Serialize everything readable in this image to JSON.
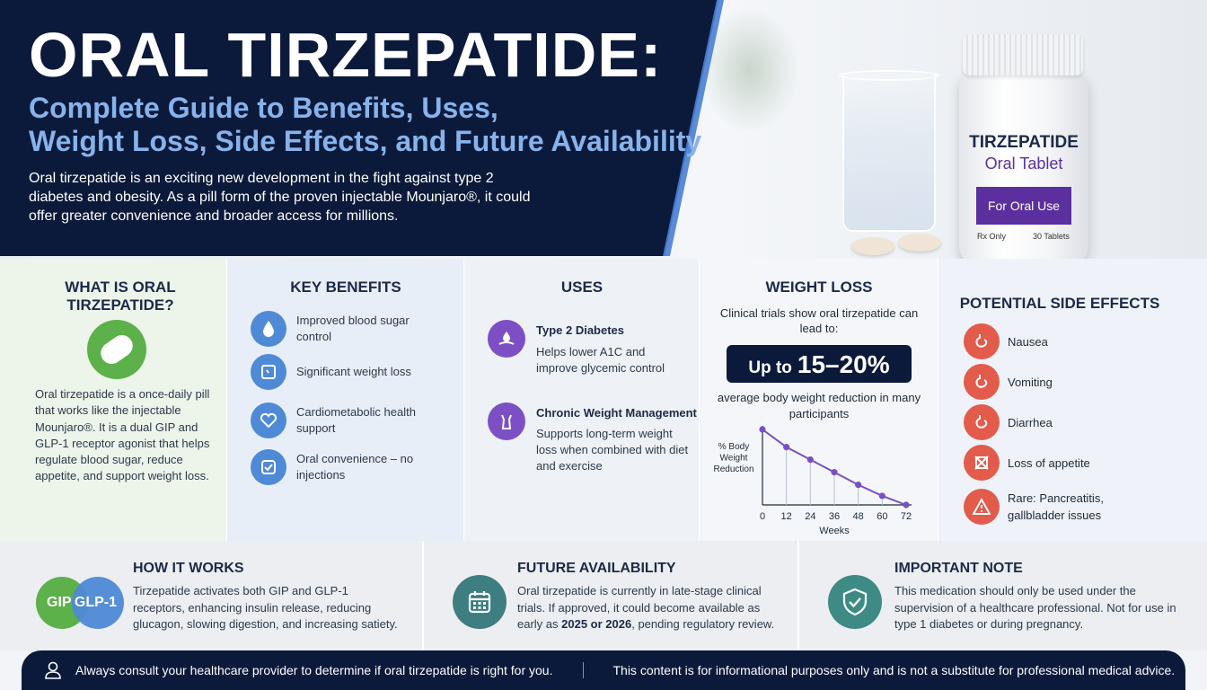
{
  "hero": {
    "title": "ORAL TIRZEPATIDE:",
    "subtitle_line1": "Complete Guide to Benefits, Uses,",
    "subtitle_line2": "Weight Loss, Side Effects, and Future Availability",
    "intro": "Oral tirzepatide is an exciting new development in the fight against type 2 diabetes and obesity. As a pill form of the proven injectable Mounjaro®, it could offer greater convenience and broader access for millions."
  },
  "bottle": {
    "brand": "TIRZEPATIDE",
    "type": "Oral Tablet",
    "use": "For Oral Use",
    "rx": "Rx Only",
    "count": "30 Tablets"
  },
  "what": {
    "title": "WHAT IS ORAL TIRZEPATIDE?",
    "text": "Oral tirzepatide is a once-daily pill that works like the injectable Mounjaro®. It is a dual GIP and GLP-1 receptor agonist that helps regulate blood sugar, reduce appetite, and support weight loss."
  },
  "benefits": {
    "title": "KEY BENEFITS",
    "items": [
      {
        "label": "Improved blood sugar control",
        "icon": "drop-icon"
      },
      {
        "label": "Significant weight loss",
        "icon": "scale-icon"
      },
      {
        "label": "Cardiometabolic health support",
        "icon": "heart-icon"
      },
      {
        "label": "Oral convenience – no injections",
        "icon": "check-icon"
      }
    ]
  },
  "uses": {
    "title": "USES",
    "items": [
      {
        "title": "Type 2 Diabetes",
        "desc": "Helps lower A1C and improve glycemic control"
      },
      {
        "title": "Chronic Weight Management",
        "desc": "Supports long-term weight loss when combined with diet and exercise"
      }
    ]
  },
  "weight": {
    "title": "WEIGHT LOSS",
    "lead": "Clinical trials show oral tirzepatide can lead to:",
    "badge_prefix": "Up to",
    "badge_value": "15–20%",
    "tail": "average body weight reduction in many participants"
  },
  "chart_data": {
    "type": "line",
    "ylabel": "% Body Weight Reduction",
    "xlabel": "Weeks",
    "x": [
      0,
      12,
      24,
      36,
      48,
      60,
      72
    ],
    "series": [
      {
        "values": [
          0,
          3.5,
          6,
          8.5,
          11,
          13.2,
          15
        ]
      }
    ],
    "xlim": [
      0,
      72
    ],
    "ylim": [
      0,
      15
    ],
    "y_inverted": true,
    "grid": false,
    "line_color": "#7b4fc4"
  },
  "side_effects": {
    "title": "POTENTIAL SIDE EFFECTS",
    "items": [
      {
        "label": "Nausea",
        "icon": "stomach-icon"
      },
      {
        "label": "Vomiting",
        "icon": "stomach-icon"
      },
      {
        "label": "Diarrhea",
        "icon": "stomach-icon"
      },
      {
        "label": "Loss of appetite",
        "icon": "no-food-icon"
      },
      {
        "label": "Rare: Pancreatitis, gallbladder issues",
        "icon": "warning-icon"
      }
    ]
  },
  "how": {
    "title": "HOW IT WORKS",
    "venn_a": "GIP",
    "venn_b": "GLP-1",
    "text": "Tirzepatide activates both GIP and GLP-1 receptors, enhancing insulin release, reducing glucagon, slowing digestion, and increasing satiety."
  },
  "future": {
    "title": "FUTURE AVAILABILITY",
    "text_before": "Oral tirzepatide is currently in late-stage clinical trials. If approved, it could become available as early as ",
    "text_bold": "2025 or 2026",
    "text_after": ", pending regulatory review."
  },
  "note": {
    "title": "IMPORTANT NOTE",
    "text": "This medication should only be used under the supervision of a healthcare professional. Not for use in type 1 diabetes or during pregnancy."
  },
  "footer": {
    "left": "Always consult your healthcare provider to determine if oral tirzepatide is right for you.",
    "right": "This content is for informational purposes only and is not a substitute for professional medical advice."
  },
  "colors": {
    "navy": "#0b1a3b",
    "green": "#5cb14a",
    "blue": "#4f8ad6",
    "purple": "#7d4fc4",
    "red": "#e25b4b",
    "teal": "#3e7d80"
  }
}
